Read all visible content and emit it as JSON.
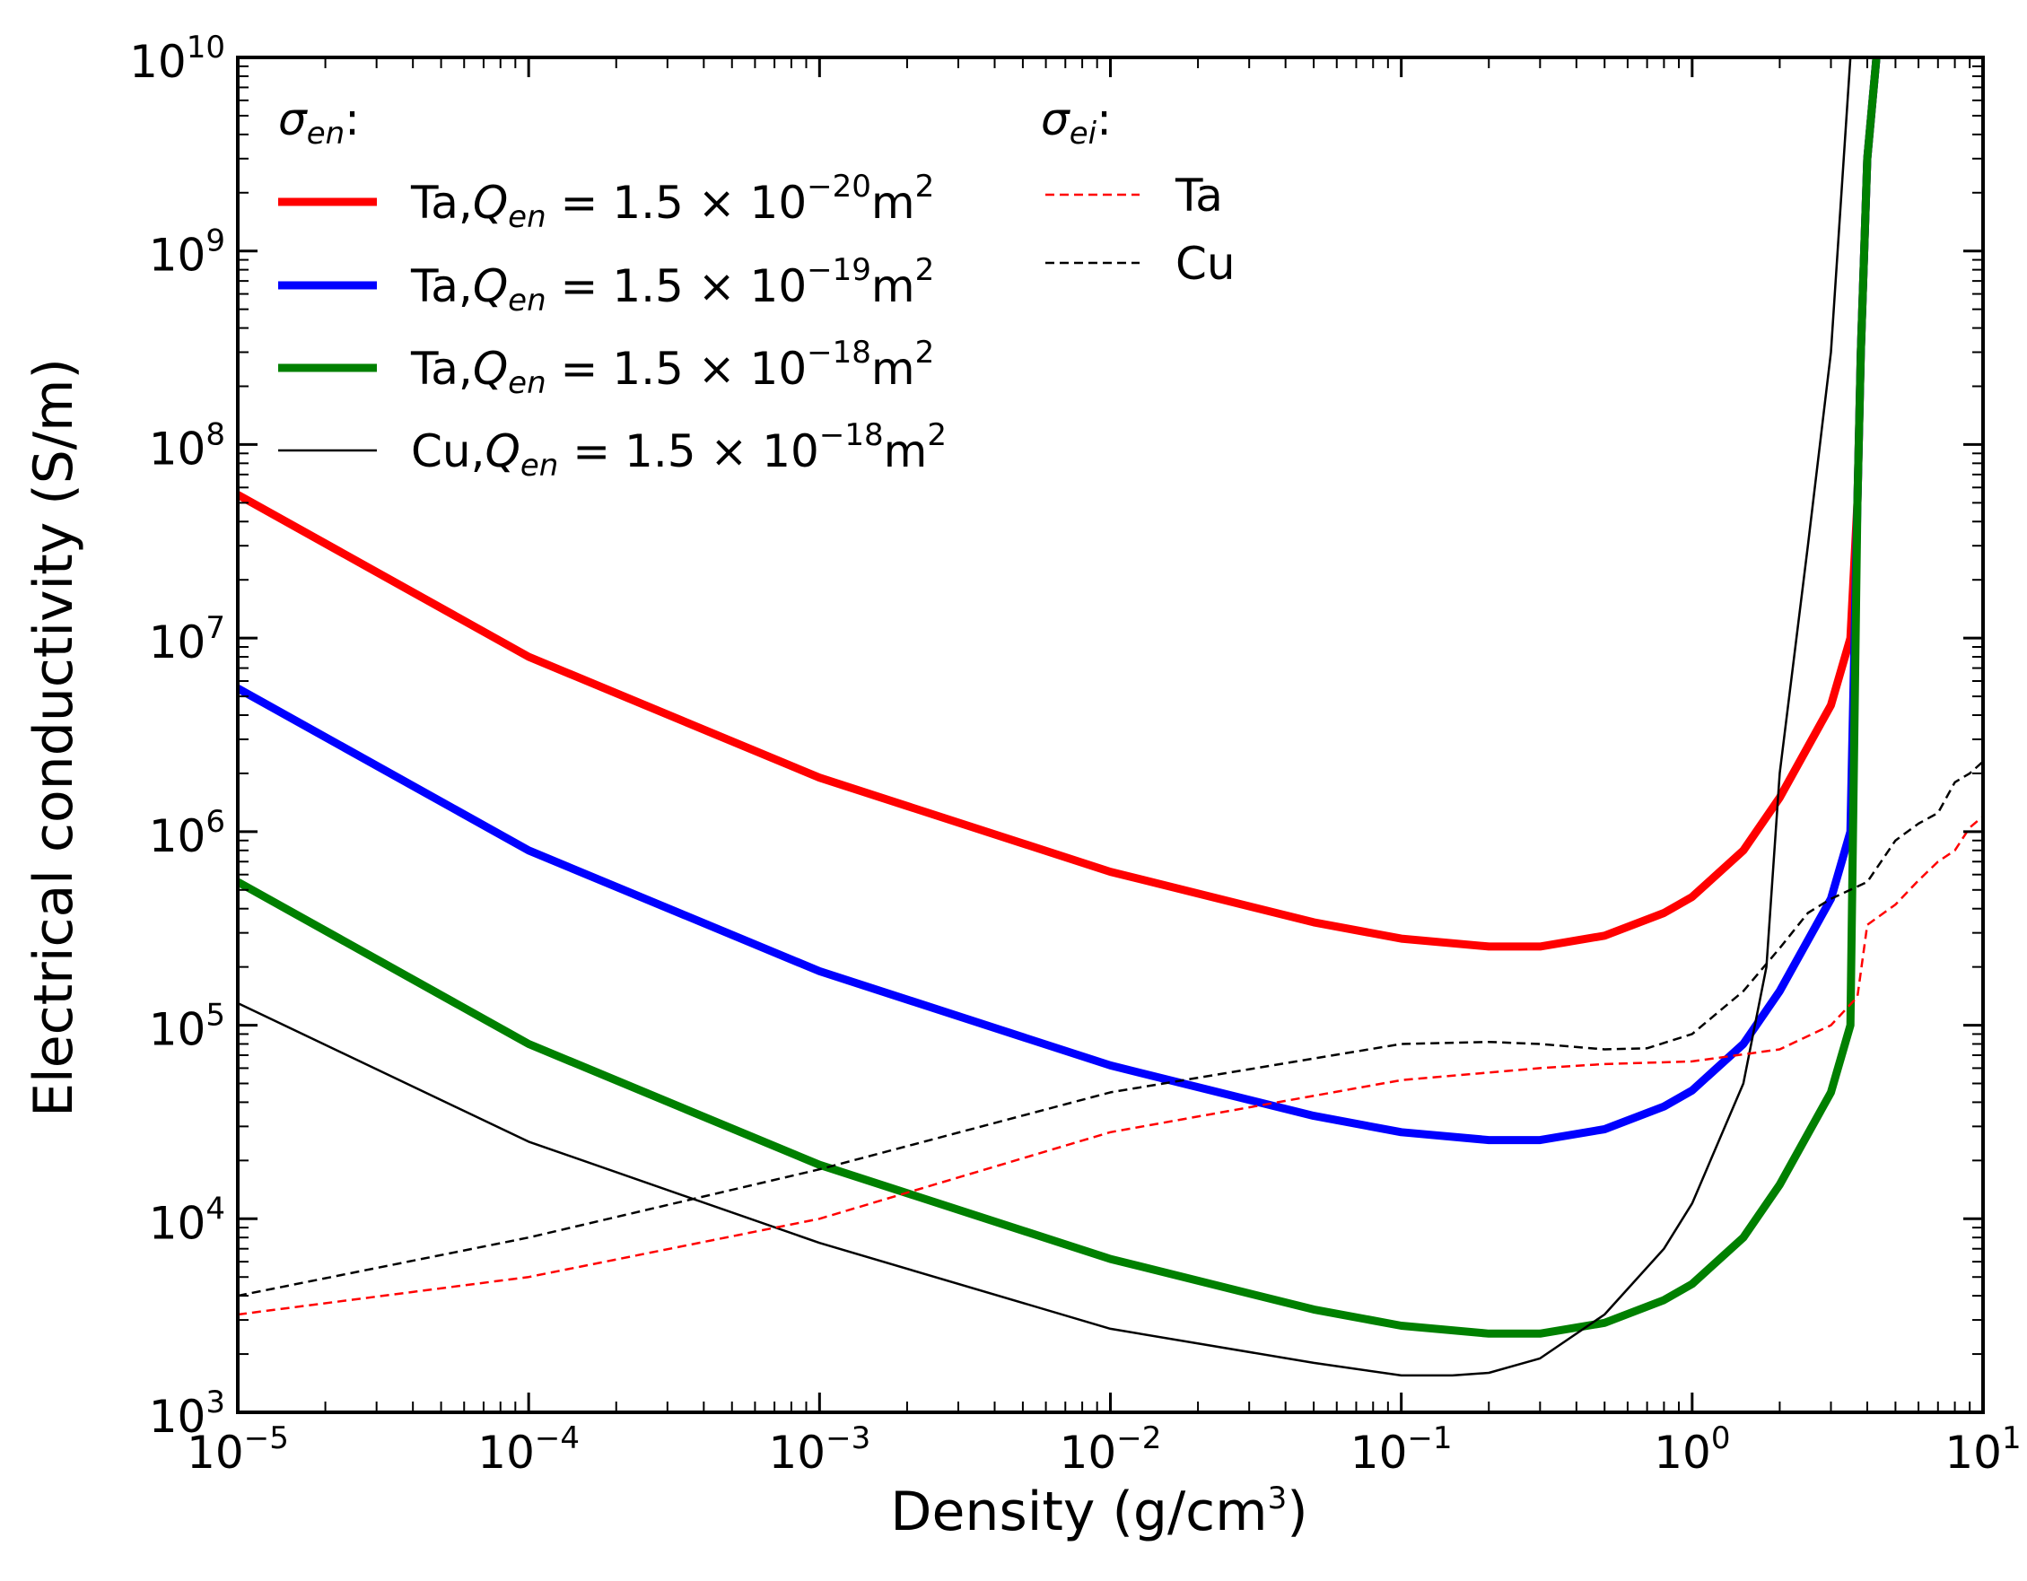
{
  "chart_data": {
    "type": "line",
    "xscale": "log",
    "yscale": "log",
    "xlim": [
      1e-05,
      10
    ],
    "ylim": [
      1000,
      10000000000
    ],
    "xlabel": "Density (g/cm³)",
    "xlabel_parts": {
      "pre": "Density (g/cm",
      "sup": "3",
      "post": ")"
    },
    "ylabel": "Electrical conductivity (S/m)",
    "x_ticks": [
      {
        "value": 1e-05,
        "base": "10",
        "exp": "−5"
      },
      {
        "value": 0.0001,
        "base": "10",
        "exp": "−4"
      },
      {
        "value": 0.001,
        "base": "10",
        "exp": "−3"
      },
      {
        "value": 0.01,
        "base": "10",
        "exp": "−2"
      },
      {
        "value": 0.1,
        "base": "10",
        "exp": "−1"
      },
      {
        "value": 1,
        "base": "10",
        "exp": "0"
      },
      {
        "value": 10,
        "base": "10",
        "exp": "1"
      }
    ],
    "y_ticks": [
      {
        "value": 1000,
        "base": "10",
        "exp": "3"
      },
      {
        "value": 10000,
        "base": "10",
        "exp": "4"
      },
      {
        "value": 100000,
        "base": "10",
        "exp": "5"
      },
      {
        "value": 1000000,
        "base": "10",
        "exp": "6"
      },
      {
        "value": 10000000,
        "base": "10",
        "exp": "7"
      },
      {
        "value": 100000000,
        "base": "10",
        "exp": "8"
      },
      {
        "value": 1000000000,
        "base": "10",
        "exp": "9"
      },
      {
        "value": 10000000000,
        "base": "10",
        "exp": "10"
      }
    ],
    "legend_groups": [
      {
        "title_sym": "σ",
        "title_sub": "en",
        "title_suffix": ":",
        "location": "top-left"
      },
      {
        "title_sym": "σ",
        "title_sub": "ei",
        "title_suffix": ":",
        "location": "top-center"
      }
    ],
    "series": [
      {
        "name": "Ta,Q_en = 1.5 × 10^-20 m^2",
        "legend": {
          "element": "Ta,",
          "q": "Q",
          "qsub": "en",
          "rest": " = 1.5 × 10",
          "exp": "−20",
          "unit": "m",
          "unitexp": "2"
        },
        "group": 0,
        "color": "#ff0000",
        "width": 9,
        "dash": "",
        "x": [
          1e-05,
          0.0001,
          0.001,
          0.01,
          0.05,
          0.1,
          0.2,
          0.3,
          0.5,
          0.8,
          1,
          1.5,
          2,
          3,
          3.5,
          3.7,
          3.8,
          4.0,
          4.3
        ],
        "y": [
          55000000,
          8000000,
          1900000,
          620000,
          340000,
          280000,
          255000,
          255000,
          290000,
          380000,
          460000,
          800000,
          1500000,
          4500000,
          10000000,
          50000000,
          300000000,
          3000000000,
          10000000000
        ]
      },
      {
        "name": "Ta,Q_en = 1.5 × 10^-19 m^2",
        "legend": {
          "element": "Ta,",
          "q": "Q",
          "qsub": "en",
          "rest": " = 1.5 × 10",
          "exp": "−19",
          "unit": "m",
          "unitexp": "2"
        },
        "group": 0,
        "color": "#0000ff",
        "width": 9,
        "dash": "",
        "x": [
          1e-05,
          0.0001,
          0.001,
          0.01,
          0.05,
          0.1,
          0.2,
          0.3,
          0.5,
          0.8,
          1,
          1.5,
          2,
          3,
          3.5,
          3.7,
          3.8,
          4.0,
          4.3
        ],
        "y": [
          5500000,
          800000,
          190000,
          62000,
          34000,
          28000,
          25500,
          25500,
          29000,
          38000,
          46000,
          80000,
          150000,
          450000,
          1000000,
          50000000,
          300000000,
          3000000000,
          10000000000
        ]
      },
      {
        "name": "Ta,Q_en = 1.5 × 10^-18 m^2",
        "legend": {
          "element": "Ta,",
          "q": "Q",
          "qsub": "en",
          "rest": " = 1.5 × 10",
          "exp": "−18",
          "unit": "m",
          "unitexp": "2"
        },
        "group": 0,
        "color": "#008000",
        "width": 9,
        "dash": "",
        "x": [
          1e-05,
          0.0001,
          0.001,
          0.01,
          0.05,
          0.1,
          0.2,
          0.3,
          0.5,
          0.8,
          1,
          1.5,
          2,
          3,
          3.5,
          3.7,
          3.8,
          4.0,
          4.3
        ],
        "y": [
          550000,
          80000,
          19000,
          6200,
          3400,
          2800,
          2550,
          2550,
          2900,
          3800,
          4600,
          8000,
          15000,
          45000,
          100000,
          50000000,
          300000000,
          3000000000,
          10000000000
        ]
      },
      {
        "name": "Cu,Q_en = 1.5 × 10^-18 m^2",
        "legend": {
          "element": "Cu,",
          "q": "Q",
          "qsub": "en",
          "rest": " = 1.5 × 10",
          "exp": "−18",
          "unit": "m",
          "unitexp": "2"
        },
        "group": 0,
        "color": "#000000",
        "width": 2.5,
        "dash": "",
        "x": [
          1e-05,
          0.0001,
          0.001,
          0.01,
          0.05,
          0.1,
          0.15,
          0.2,
          0.3,
          0.5,
          0.8,
          1,
          1.5,
          1.8,
          2,
          2.5,
          3,
          3.5
        ],
        "y": [
          130000,
          25000,
          7500,
          2700,
          1800,
          1550,
          1550,
          1600,
          1900,
          3200,
          7000,
          12000,
          50000,
          200000,
          2000000,
          30000000,
          300000000,
          10000000000
        ]
      },
      {
        "name": "Ta",
        "legend": {
          "label": "Ta"
        },
        "group": 1,
        "color": "#ff0000",
        "width": 2.5,
        "dash": "10,6",
        "x": [
          1e-05,
          0.0001,
          0.001,
          0.01,
          0.1,
          0.3,
          0.5,
          1,
          2,
          3,
          3.7,
          4,
          5,
          6,
          7,
          8,
          9,
          10
        ],
        "y": [
          3200,
          5000,
          10000,
          28000,
          52000,
          60000,
          63000,
          65000,
          75000,
          100000,
          140000,
          330000,
          420000,
          560000,
          700000,
          800000,
          1050000,
          1200000
        ]
      },
      {
        "name": "Cu",
        "legend": {
          "label": "Cu"
        },
        "group": 1,
        "color": "#000000",
        "width": 2.5,
        "dash": "10,6",
        "x": [
          1e-05,
          0.0001,
          0.001,
          0.01,
          0.1,
          0.2,
          0.3,
          0.5,
          0.7,
          1,
          1.5,
          2,
          2.5,
          3,
          4,
          5,
          6,
          7,
          8,
          9,
          10
        ],
        "y": [
          4000,
          8000,
          18000,
          45000,
          80000,
          82000,
          80000,
          75000,
          76000,
          90000,
          150000,
          250000,
          380000,
          450000,
          550000,
          900000,
          1100000,
          1250000,
          1800000,
          2000000,
          2300000
        ]
      }
    ]
  }
}
